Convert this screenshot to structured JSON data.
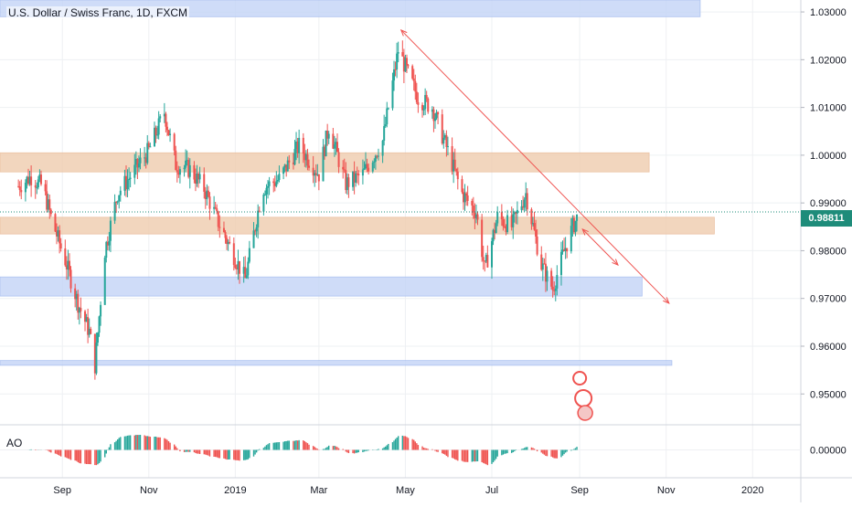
{
  "symbol_title": "U.S. Dollar / Swiss Franc, 1D, FXCM",
  "indicator_label": "AO",
  "last_price_label": "0.98811",
  "colors": {
    "up": "#26a69a",
    "down": "#ef5350",
    "support_zone": "#c7d7f7",
    "resistance_zone": "#f0cfb3",
    "trendline": "#ef5350",
    "price_tag": "#1e8c7a"
  },
  "chart_data": {
    "type": "candlestick",
    "timeframe": "1D",
    "x_ticks": [
      "Sep",
      "Nov",
      "2019",
      "Mar",
      "May",
      "Jul",
      "Sep",
      "Nov",
      "2020"
    ],
    "y_ticks": [
      "1.03000",
      "1.02000",
      "1.01000",
      "1.00000",
      "0.99000",
      "0.98000",
      "0.97000",
      "0.96000",
      "0.95000"
    ],
    "ylim": [
      0.9445,
      1.0325
    ],
    "last_price": 0.98811,
    "price_path": [
      [
        "2018-08-01",
        0.9935
      ],
      [
        "2018-08-10",
        0.9955
      ],
      [
        "2018-08-18",
        0.9935
      ],
      [
        "2018-08-25",
        0.986
      ],
      [
        "2018-09-03",
        0.978
      ],
      [
        "2018-09-12",
        0.969
      ],
      [
        "2018-09-20",
        0.963
      ],
      [
        "2018-09-24",
        0.956
      ],
      [
        "2018-10-01",
        0.98
      ],
      [
        "2018-10-10",
        0.992
      ],
      [
        "2018-10-20",
        0.996
      ],
      [
        "2018-11-01",
        1.001
      ],
      [
        "2018-11-12",
        1.009
      ],
      [
        "2018-11-20",
        0.998
      ],
      [
        "2018-11-30",
        0.997
      ],
      [
        "2018-12-10",
        0.993
      ],
      [
        "2018-12-20",
        0.986
      ],
      [
        "2018-12-31",
        0.979
      ],
      [
        "2019-01-08",
        0.974
      ],
      [
        "2019-01-20",
        0.993
      ],
      [
        "2019-02-01",
        0.995
      ],
      [
        "2019-02-15",
        1.002
      ],
      [
        "2019-03-01",
        0.996
      ],
      [
        "2019-03-08",
        1.006
      ],
      [
        "2019-03-20",
        0.994
      ],
      [
        "2019-04-01",
        0.996
      ],
      [
        "2019-04-15",
        1.003
      ],
      [
        "2019-04-26",
        1.022
      ],
      [
        "2019-05-10",
        1.012
      ],
      [
        "2019-05-20",
        1.01
      ],
      [
        "2019-06-01",
        1.0
      ],
      [
        "2019-06-10",
        0.992
      ],
      [
        "2019-06-20",
        0.988
      ],
      [
        "2019-06-26",
        0.976
      ],
      [
        "2019-07-05",
        0.987
      ],
      [
        "2019-07-15",
        0.985
      ],
      [
        "2019-07-25",
        0.992
      ],
      [
        "2019-08-05",
        0.977
      ],
      [
        "2019-08-13",
        0.972
      ],
      [
        "2019-08-20",
        0.979
      ],
      [
        "2019-08-27",
        0.985
      ],
      [
        "2019-09-01",
        0.988
      ]
    ],
    "horizontal_zones": [
      {
        "kind": "support",
        "from": 0.9705,
        "to": 0.9745,
        "start": "2018-08-01",
        "end": "2019-10-15"
      },
      {
        "kind": "resistance",
        "from": 0.9835,
        "to": 0.987,
        "start": "2018-08-01",
        "end": "2019-12-05"
      },
      {
        "kind": "resistance",
        "from": 0.9965,
        "to": 1.0005,
        "start": "2018-08-01",
        "end": "2019-10-20"
      },
      {
        "kind": "support",
        "from": 0.956,
        "to": 0.957,
        "start": "2018-08-01",
        "end": "2019-11-05"
      },
      {
        "kind": "support",
        "from": 1.029,
        "to": 1.0325,
        "start": "2018-08-01",
        "end": "2019-11-25"
      }
    ],
    "trendlines": [
      {
        "from": [
          "2019-04-28",
          1.0262
        ],
        "to": [
          "2019-11-03",
          0.969
        ]
      },
      {
        "from": [
          "2019-09-03",
          0.9845
        ],
        "to": [
          "2019-09-28",
          0.977
        ]
      }
    ],
    "ao_range": [
      -0.02,
      0.02
    ]
  }
}
